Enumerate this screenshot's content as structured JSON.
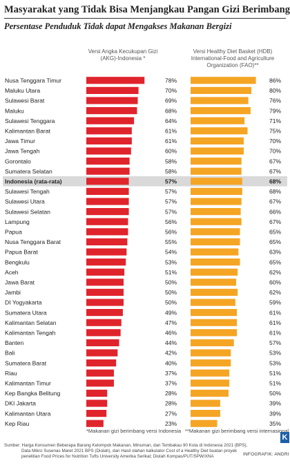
{
  "title": "Masyarakat yang Tidak Bisa Menjangkau Pangan Gizi Berimbang",
  "subtitle": "Persentase Penduduk Tidak dapat Mengakses Makanan Bergizi",
  "colors": {
    "akg": "#e0242c",
    "hdb": "#f5a524",
    "highlight": "#d9d9d9"
  },
  "chart_data": {
    "type": "bar",
    "title": "Persentase Penduduk Tidak dapat Mengakses Makanan Bergizi",
    "highlight_category": "Indonesia (rata-rata)",
    "categories": [
      "Nusa Tenggara Timur",
      "Maluku Utara",
      "Sulawesi Barat",
      "Maluku",
      "Sulawesi Tenggara",
      "Kalimantan Barat",
      "Jawa Timur",
      "Jawa Tengah",
      "Gorontalo",
      "Sumatera Selatan",
      "Indonesia (rata-rata)",
      "Sulawesi Tengah",
      "Sulawesi Utara",
      "Sulawesi Selatan",
      "Lampung",
      "Papua",
      "Nusa Tenggara Barat",
      "Papua Barat",
      "Bengkulu",
      "Aceh",
      "Jawa Barat",
      "Jambi",
      "DI Yogyakarta",
      "Sumatera Utara",
      "Kalimantan Selatan",
      "Kalimantan Tengah",
      "Banten",
      "Bali",
      "Sumatera Barat",
      "Riau",
      "Kalimantan Timur",
      "Kep Bangka Belitung",
      "DKI Jakarta",
      "Kalimantan Utara",
      "Kep Riau"
    ],
    "series": [
      {
        "name": "Versi Angka Kecukupan Gizi (AKG)-Indonesia *",
        "color": "#e0242c",
        "values": [
          78,
          70,
          69,
          68,
          64,
          61,
          61,
          60,
          58,
          58,
          57,
          57,
          57,
          57,
          56,
          56,
          55,
          54,
          53,
          51,
          50,
          50,
          50,
          49,
          47,
          46,
          44,
          42,
          40,
          37,
          37,
          28,
          28,
          27,
          23
        ]
      },
      {
        "name": "Versi Healthy Diet Basket (HDB) International-Food and Agriculture Organization (FAO)**",
        "color": "#f5a524",
        "values": [
          86,
          80,
          76,
          79,
          71,
          75,
          70,
          70,
          67,
          67,
          68,
          68,
          67,
          66,
          67,
          65,
          65,
          63,
          65,
          62,
          60,
          62,
          59,
          61,
          61,
          61,
          57,
          53,
          53,
          51,
          51,
          50,
          39,
          39,
          35
        ]
      }
    ],
    "xlim": [
      0,
      100
    ],
    "unit": "%"
  },
  "headers": {
    "akg_line1": "Versi Angka Kecukupan Gizi",
    "akg_line2": "(AKG)-Indonesia *",
    "hdb_line1": "Versi Healthy Diet Basket (HDB)",
    "hdb_line2": "International-Food and Agriculture",
    "hdb_line3": "Organization (FAO)**"
  },
  "notes": {
    "akg": "*Makanan gizi berimbang versi Indonesia",
    "hdb": "**Makanan gizi berimbang versi internasional"
  },
  "source": {
    "line1": "Sumber: Harga Konsumen Beberapa Barang Kelompok Makanan, Minuman, dan Tembakau 90 Kota di Indonesia 2021 (BPS),",
    "line2": "Data Mikro Susenas Maret 2021 BPS (Diolah), dan Hasil olahan kalkulator Cost of a Healthy Diet buatan proyek",
    "line3": "penelitian Food Prices for Nutrition Tufts University Amerika Serikat; Diolah Kompas/PUT/SPW/XNA"
  },
  "brand": {
    "credit": "INFOGRAFIK: ANDRI",
    "logo": "K"
  }
}
